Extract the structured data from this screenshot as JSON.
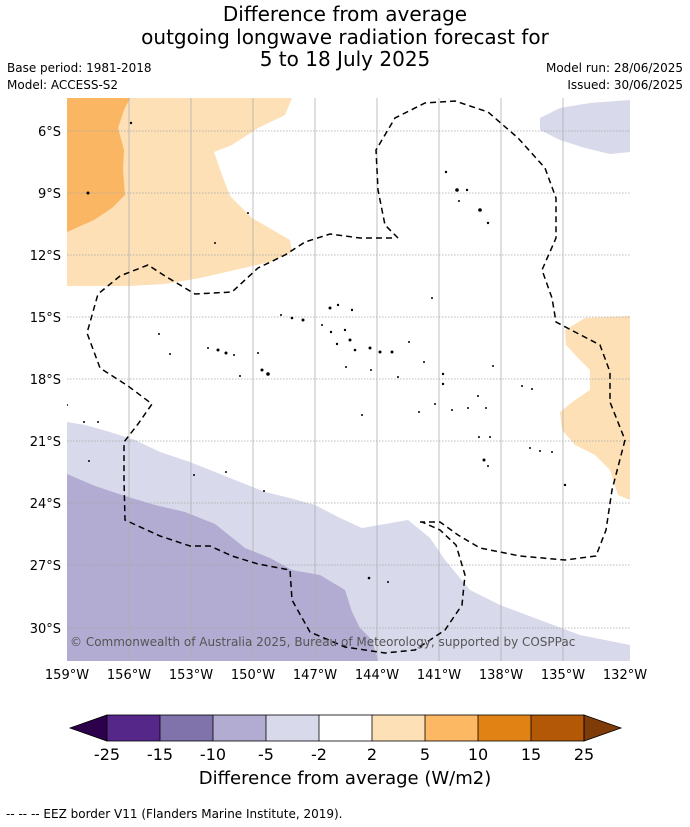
{
  "title": {
    "line1": "Difference from average",
    "line2": "outgoing longwave radiation forecast for",
    "line3": "5 to 18 July 2025"
  },
  "meta": {
    "base_period": "Base period: 1981-2018",
    "model": "Model: ACCESS-S2",
    "model_run": "Model run: 28/06/2025",
    "issued": "Issued: 30/06/2025"
  },
  "map": {
    "lat_ticks": [
      "6°S",
      "9°S",
      "12°S",
      "15°S",
      "18°S",
      "21°S",
      "24°S",
      "27°S",
      "30°S"
    ],
    "lon_ticks": [
      "159°W",
      "156°W",
      "153°W",
      "150°W",
      "147°W",
      "144°W",
      "141°W",
      "138°W",
      "135°W",
      "132°W"
    ],
    "lat_range": [
      -32.4,
      -4.4
    ],
    "lon_range": [
      -159,
      -132
    ],
    "copyright": "© Commonwealth of Australia 2025, Bureau of Meteorology, supported by COSPPac",
    "colors": {
      "pos_2_5": "#fde0b6",
      "pos_5_10": "#fbb663",
      "neg_5_2": "#d8d9eb",
      "neg_10_5": "#b2abd2",
      "grid": "#a6a6a6"
    }
  },
  "colorbar": {
    "ticks": [
      "-25",
      "-15",
      "-10",
      "-5",
      "-2",
      "2",
      "5",
      "10",
      "15",
      "25"
    ],
    "colors": [
      "#2d004b",
      "#542788",
      "#8073ac",
      "#b2abd2",
      "#d8daeb",
      "#ffffff",
      "#fee0b6",
      "#fdb863",
      "#e08214",
      "#b35806",
      "#7f3b08"
    ],
    "label": "Difference from average (W/m2)"
  },
  "footer": "--  --  -- EEZ border V11 (Flanders Marine Institute, 2019)."
}
